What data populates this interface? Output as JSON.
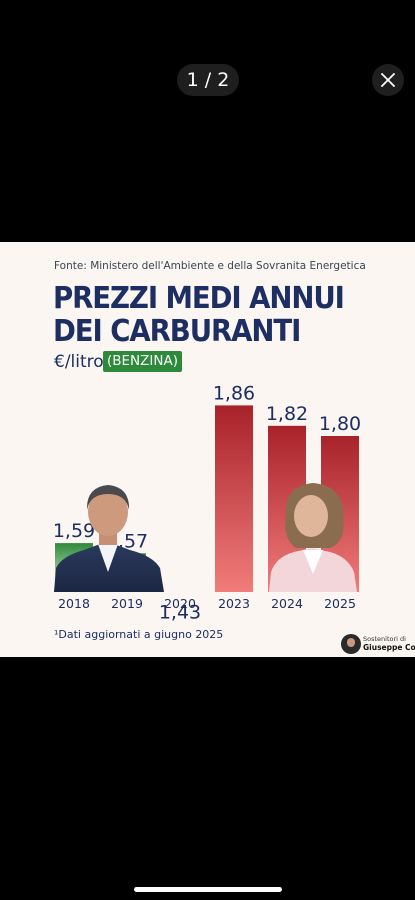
{
  "viewer": {
    "counter": "1 / 2",
    "close_icon": "close-icon"
  },
  "card": {
    "source": "Fonte: Ministero dell'Ambiente e della Sovranita Energetica",
    "title_line1": "PREZZI MEDI ANNUI",
    "title_line2": "DEI CARBURANTI",
    "unit": "€/litro",
    "badge": "(BENZINA)",
    "footnote": "¹Dati aggiornati a giugno 2025",
    "logo_line1": "Sostenitori di",
    "logo_line2": "Giuseppe Conte"
  },
  "chart_data": {
    "type": "bar",
    "categories": [
      "2018",
      "2019",
      "2020",
      "2023",
      "2024",
      "2025"
    ],
    "values": [
      1.59,
      1.57,
      1.43,
      1.86,
      1.82,
      1.8
    ],
    "value_labels": [
      "1,59",
      "1,57",
      "1,43",
      "1,86",
      "1,82",
      "1,80"
    ],
    "bar_colors": [
      "#2f8a3c",
      "#2f8a3c",
      "#2f8a3c",
      "#b0262a",
      "#b0262a",
      "#b0262a"
    ],
    "title": "PREZZI MEDI ANNUI DEI CARBURANTI",
    "ylabel": "€/litro",
    "grid": false,
    "legend": "none"
  }
}
